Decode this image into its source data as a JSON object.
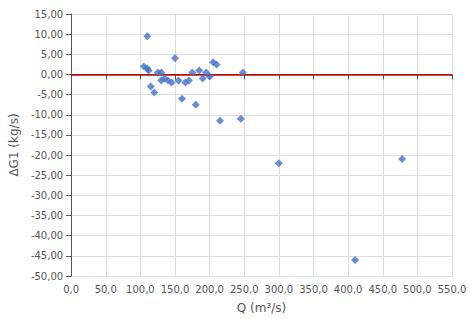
{
  "chart_data": {
    "type": "scatter",
    "xlabel": "Q (m³/s)",
    "ylabel": "ΔG1 (kg/s)",
    "x": [
      105,
      110,
      110,
      112,
      115,
      120,
      125,
      130,
      130,
      135,
      140,
      145,
      150,
      155,
      160,
      165,
      170,
      175,
      180,
      185,
      190,
      195,
      200,
      205,
      210,
      215,
      245,
      248,
      300,
      410,
      478
    ],
    "values": [
      2.0,
      9.5,
      1.5,
      1.0,
      -3.0,
      -4.5,
      0.5,
      0.5,
      -1.5,
      -1.0,
      -1.5,
      -2.0,
      4.0,
      -1.5,
      -6.0,
      -2.0,
      -1.5,
      0.5,
      -7.5,
      1.0,
      -1.0,
      0.5,
      -0.5,
      3.0,
      2.5,
      -11.5,
      -11.0,
      0.5,
      -22.0,
      -46.0,
      -21.0
    ],
    "color": "#4472c4",
    "marker": "diamond",
    "hline": {
      "y": 0,
      "color": "#cc0000"
    },
    "xlim": [
      0,
      550
    ],
    "ylim": [
      -50,
      15
    ],
    "xticks": [
      {
        "value": 0,
        "label": "0,0"
      },
      {
        "value": 50,
        "label": "50,0"
      },
      {
        "value": 100,
        "label": "100,0"
      },
      {
        "value": 150,
        "label": "150,0"
      },
      {
        "value": 200,
        "label": "200,0"
      },
      {
        "value": 250,
        "label": "250,0"
      },
      {
        "value": 300,
        "label": "300,0"
      },
      {
        "value": 350,
        "label": "350,0"
      },
      {
        "value": 400,
        "label": "400,0"
      },
      {
        "value": 450,
        "label": "450,0"
      },
      {
        "value": 500,
        "label": "500,0"
      },
      {
        "value": 550,
        "label": "550,0"
      }
    ],
    "yticks": [
      {
        "value": -50,
        "label": "-50,00"
      },
      {
        "value": -45,
        "label": "-45,00"
      },
      {
        "value": -40,
        "label": "-40,00"
      },
      {
        "value": -35,
        "label": "-35,00"
      },
      {
        "value": -30,
        "label": "-30,00"
      },
      {
        "value": -25,
        "label": "-25,00"
      },
      {
        "value": -20,
        "label": "-20,00"
      },
      {
        "value": -15,
        "label": "-15,00"
      },
      {
        "value": -10,
        "label": "-10,00"
      },
      {
        "value": -5,
        "label": "-5,00"
      },
      {
        "value": 0,
        "label": "0,00"
      },
      {
        "value": 5,
        "label": "5,00"
      },
      {
        "value": 10,
        "label": "10,00"
      },
      {
        "value": 15,
        "label": "15,00"
      }
    ],
    "grid": true
  }
}
